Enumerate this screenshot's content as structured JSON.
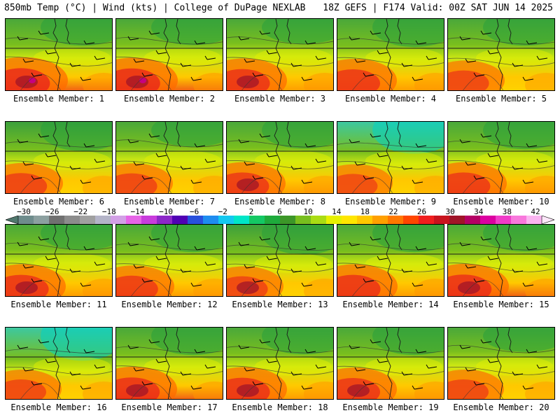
{
  "header": {
    "left": "850mb Temp (°C) | Wind (kts) | College of DuPage NEXLAB",
    "right": "18Z GEFS | F174 Valid: 00Z SAT JUN 14 2025"
  },
  "colorbar": {
    "ticks": [
      "−30",
      "−26",
      "−22",
      "−18",
      "−14",
      "−10",
      "−6",
      "−2",
      "2",
      "6",
      "10",
      "14",
      "18",
      "22",
      "26",
      "30",
      "34",
      "38",
      "42"
    ],
    "colors": [
      "#6e8c8c",
      "#8ca0a0",
      "#707070",
      "#8c8c8c",
      "#a0a0a0",
      "#b4b4c8",
      "#d2a0e6",
      "#e664e6",
      "#c83cdc",
      "#8c28c8",
      "#5000b4",
      "#2850dc",
      "#1e8cf0",
      "#14c8f0",
      "#00e6c8",
      "#14c864",
      "#1eaa3c",
      "#3c9628",
      "#78be1e",
      "#aadc14",
      "#e6f000",
      "#ffe600",
      "#ffc800",
      "#ffa000",
      "#ff7800",
      "#ff4600",
      "#f01e1e",
      "#c8141e",
      "#a01428",
      "#b40064",
      "#dc00a0",
      "#f03cc8",
      "#f878dc",
      "#fab4f0"
    ]
  },
  "members": [
    {
      "label": "Ensemble Member: 1",
      "warm": 0.95,
      "cool": 0.35,
      "hot": true
    },
    {
      "label": "Ensemble Member: 2",
      "warm": 0.9,
      "cool": 0.3,
      "hot": true
    },
    {
      "label": "Ensemble Member: 3",
      "warm": 0.8,
      "cool": 0.2,
      "hot": true
    },
    {
      "label": "Ensemble Member: 4",
      "warm": 0.75,
      "cool": 0.45,
      "hot": false
    },
    {
      "label": "Ensemble Member: 5",
      "warm": 0.55,
      "cool": 0.35,
      "hot": false
    },
    {
      "label": "Ensemble Member: 6",
      "warm": 0.6,
      "cool": 0.55,
      "hot": false
    },
    {
      "label": "Ensemble Member: 7",
      "warm": 0.55,
      "cool": 0.2,
      "hot": false
    },
    {
      "label": "Ensemble Member: 8",
      "warm": 0.7,
      "cool": 0.35,
      "hot": true
    },
    {
      "label": "Ensemble Member: 9",
      "warm": 0.45,
      "cool": 0.75,
      "hot": false
    },
    {
      "label": "Ensemble Member: 10",
      "warm": 0.7,
      "cool": 0.4,
      "hot": false
    },
    {
      "label": "Ensemble Member: 11",
      "warm": 0.8,
      "cool": 0.25,
      "hot": true
    },
    {
      "label": "Ensemble Member: 12",
      "warm": 0.65,
      "cool": 0.4,
      "hot": false
    },
    {
      "label": "Ensemble Member: 13",
      "warm": 0.55,
      "cool": 0.6,
      "hot": true
    },
    {
      "label": "Ensemble Member: 14",
      "warm": 0.8,
      "cool": 0.4,
      "hot": false
    },
    {
      "label": "Ensemble Member: 15",
      "warm": 0.85,
      "cool": 0.35,
      "hot": true
    },
    {
      "label": "Ensemble Member: 16",
      "warm": 0.5,
      "cool": 0.85,
      "hot": false
    },
    {
      "label": "Ensemble Member: 17",
      "warm": 0.85,
      "cool": 0.4,
      "hot": true
    },
    {
      "label": "Ensemble Member: 18",
      "warm": 0.8,
      "cool": 0.35,
      "hot": true
    },
    {
      "label": "Ensemble Member: 19",
      "warm": 0.75,
      "cool": 0.4,
      "hot": true
    },
    {
      "label": "Ensemble Member: 20",
      "warm": 0.5,
      "cool": 0.15,
      "hot": false
    }
  ]
}
